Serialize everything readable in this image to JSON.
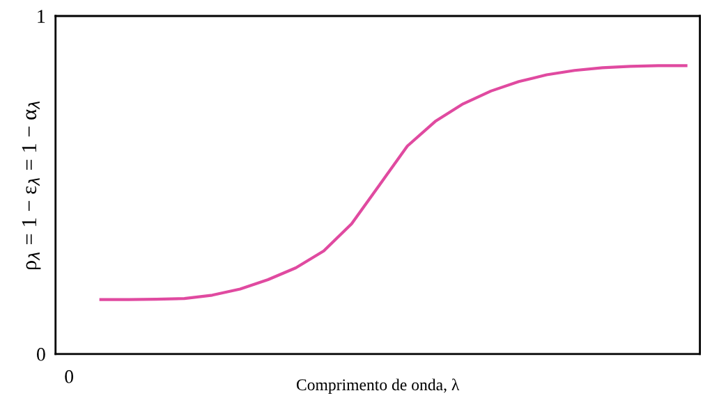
{
  "chart_data": {
    "type": "line",
    "xlabel": "Comprimento de onda, λ",
    "ylabel": "ρ$_{λ}$ = 1 − ε$_{λ}$ = 1 − α$_{λ}$",
    "categories": [
      null,
      null,
      null,
      null,
      null,
      null,
      null,
      null,
      null,
      null,
      null,
      null,
      null,
      null,
      null,
      null,
      null,
      null,
      null,
      null,
      null,
      null
    ],
    "series": [
      {
        "color": "#e04aa0",
        "values": [
          0.161,
          0.161,
          0.162,
          0.164,
          0.174,
          0.192,
          0.22,
          0.255,
          0.305,
          0.385,
          0.5,
          0.615,
          0.688,
          0.74,
          0.778,
          0.806,
          0.826,
          0.839,
          0.847,
          0.851,
          0.853,
          0.853
        ]
      }
    ],
    "ylim": [
      0,
      1
    ],
    "yticks": [
      0,
      1
    ],
    "grid": false,
    "marker": "none",
    "line_style": "solid",
    "annotations": [
      "0"
    ]
  }
}
